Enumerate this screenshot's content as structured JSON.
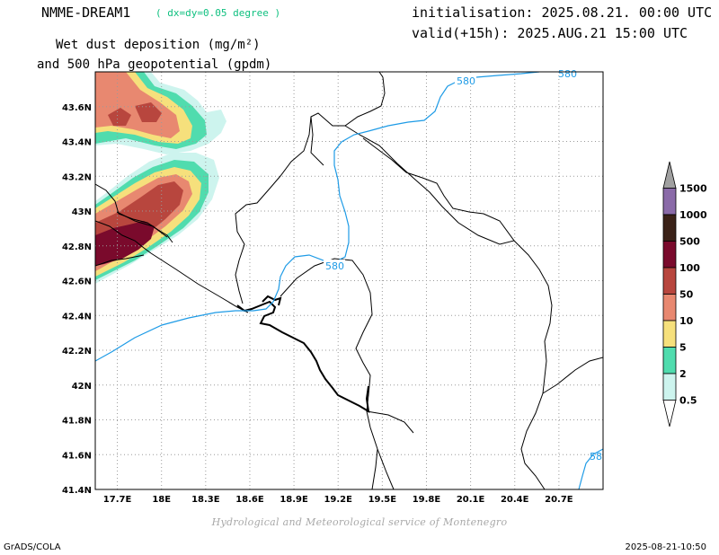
{
  "header": {
    "model_name": "NMME-DREAM1",
    "resolution": "( dx=dy=0.05 degree )",
    "title_line1": "Wet dust deposition (mg/m²)",
    "title_line2": "and 500 hPa geopotential (gpdm)",
    "init": "initialisation: 2025.08.21. 00:00 UTC",
    "valid": "valid(+15h): 2025.AUG.21 15:00 UTC"
  },
  "map": {
    "x_tick_labels": [
      "17.7E",
      "18E",
      "18.3E",
      "18.6E",
      "18.9E",
      "19.2E",
      "19.5E",
      "19.8E",
      "20.1E",
      "20.4E",
      "20.7E"
    ],
    "y_tick_labels": [
      "43.6N",
      "43.4N",
      "43.2N",
      "43N",
      "42.8N",
      "42.6N",
      "42.4N",
      "42.2N",
      "42N",
      "41.8N",
      "41.6N",
      "41.4N"
    ],
    "lon_range": [
      17.55,
      21.0
    ],
    "lat_range": [
      41.4,
      43.8
    ],
    "grid": true,
    "contour_color": "#1e9be6",
    "contour_labels": [
      "580",
      "580",
      "580",
      "58"
    ]
  },
  "colorbar": {
    "levels": [
      "1500",
      "1000",
      "500",
      "100",
      "50",
      "10",
      "5",
      "2",
      "0.5"
    ],
    "colors": [
      "#a0a0a0",
      "#8a6aa8",
      "#3b2218",
      "#7a0a2c",
      "#b8463e",
      "#e88870",
      "#f6e07c",
      "#50dcae",
      "#cdf4ee",
      "#ffffff"
    ]
  },
  "footer": {
    "credit": "Hydrological and Meteorological service of Montenegro",
    "software": "GrADS/COLA",
    "timestamp": "2025-08-21-10:50"
  }
}
